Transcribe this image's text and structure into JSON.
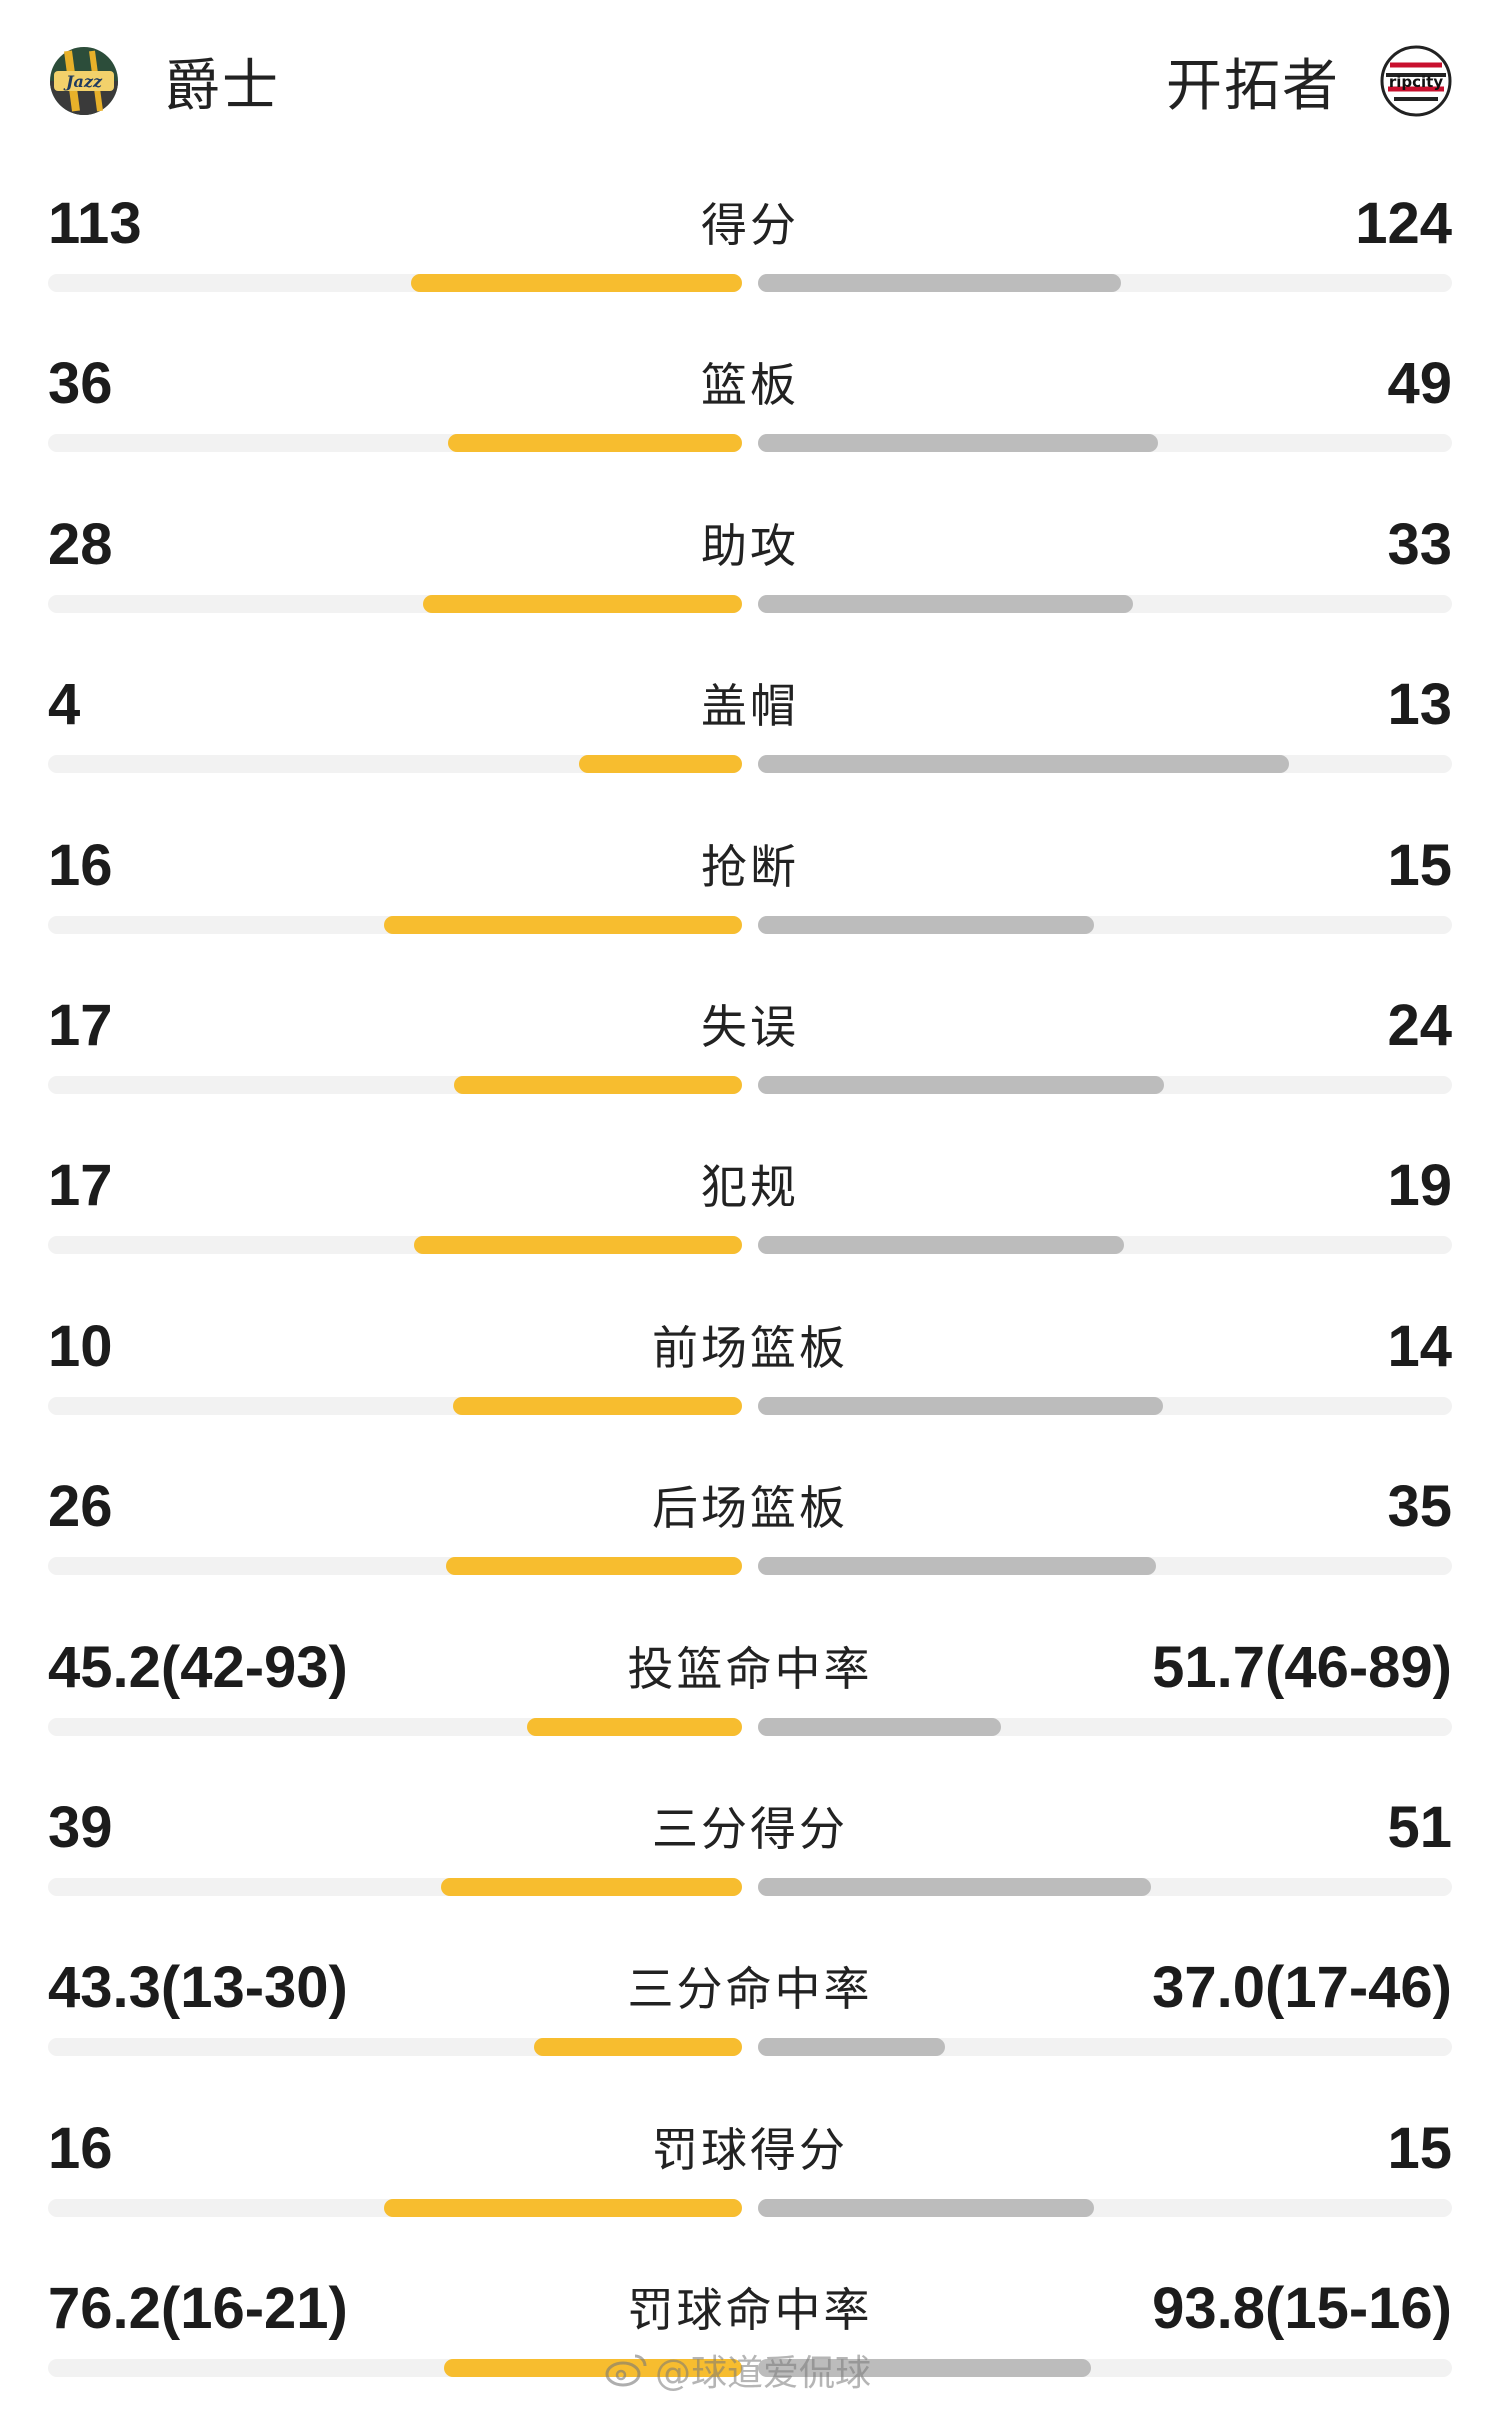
{
  "header": {
    "home": {
      "name": "爵士",
      "logo_icon": "jazz-logo-icon",
      "logo_text": "Jazz"
    },
    "away": {
      "name": "开拓者",
      "logo_icon": "trail-blazers-logo-icon",
      "logo_text": "ripcity"
    }
  },
  "colors": {
    "home_bar": "#f7bd2f",
    "away_bar": "#bcbcbc",
    "track": "#f2f2f2"
  },
  "stats": [
    {
      "label": "得分",
      "home": "113",
      "away": "124",
      "home_share": 0.4768,
      "away_share": 0.5232
    },
    {
      "label": "篮板",
      "home": "36",
      "away": "49",
      "home_share": 0.4235,
      "away_share": 0.5765
    },
    {
      "label": "助攻",
      "home": "28",
      "away": "33",
      "home_share": 0.459,
      "away_share": 0.541
    },
    {
      "label": "盖帽",
      "home": "4",
      "away": "13",
      "home_share": 0.2353,
      "away_share": 0.7647
    },
    {
      "label": "抢断",
      "home": "16",
      "away": "15",
      "home_share": 0.5161,
      "away_share": 0.4839
    },
    {
      "label": "失误",
      "home": "17",
      "away": "24",
      "home_share": 0.4146,
      "away_share": 0.5854
    },
    {
      "label": "犯规",
      "home": "17",
      "away": "19",
      "home_share": 0.4722,
      "away_share": 0.5278
    },
    {
      "label": "前场篮板",
      "home": "10",
      "away": "14",
      "home_share": 0.4167,
      "away_share": 0.5833
    },
    {
      "label": "后场篮板",
      "home": "26",
      "away": "35",
      "home_share": 0.4262,
      "away_share": 0.5738
    },
    {
      "label": "投篮命中率",
      "home": "45.2(42-93)",
      "away": "51.7(46-89)",
      "home_share": 0.31,
      "away_share": 0.35
    },
    {
      "label": "三分得分",
      "home": "39",
      "away": "51",
      "home_share": 0.4333,
      "away_share": 0.5667
    },
    {
      "label": "三分命中率",
      "home": "43.3(13-30)",
      "away": "37.0(17-46)",
      "home_share": 0.3,
      "away_share": 0.27
    },
    {
      "label": "罚球得分",
      "home": "16",
      "away": "15",
      "home_share": 0.5161,
      "away_share": 0.4839
    },
    {
      "label": "罚球命中率",
      "home": "76.2(16-21)",
      "away": "93.8(15-16)",
      "home_share": 0.43,
      "away_share": 0.48
    }
  ],
  "watermark": {
    "icon": "weibo-icon",
    "text": "@球道爱侃球"
  }
}
